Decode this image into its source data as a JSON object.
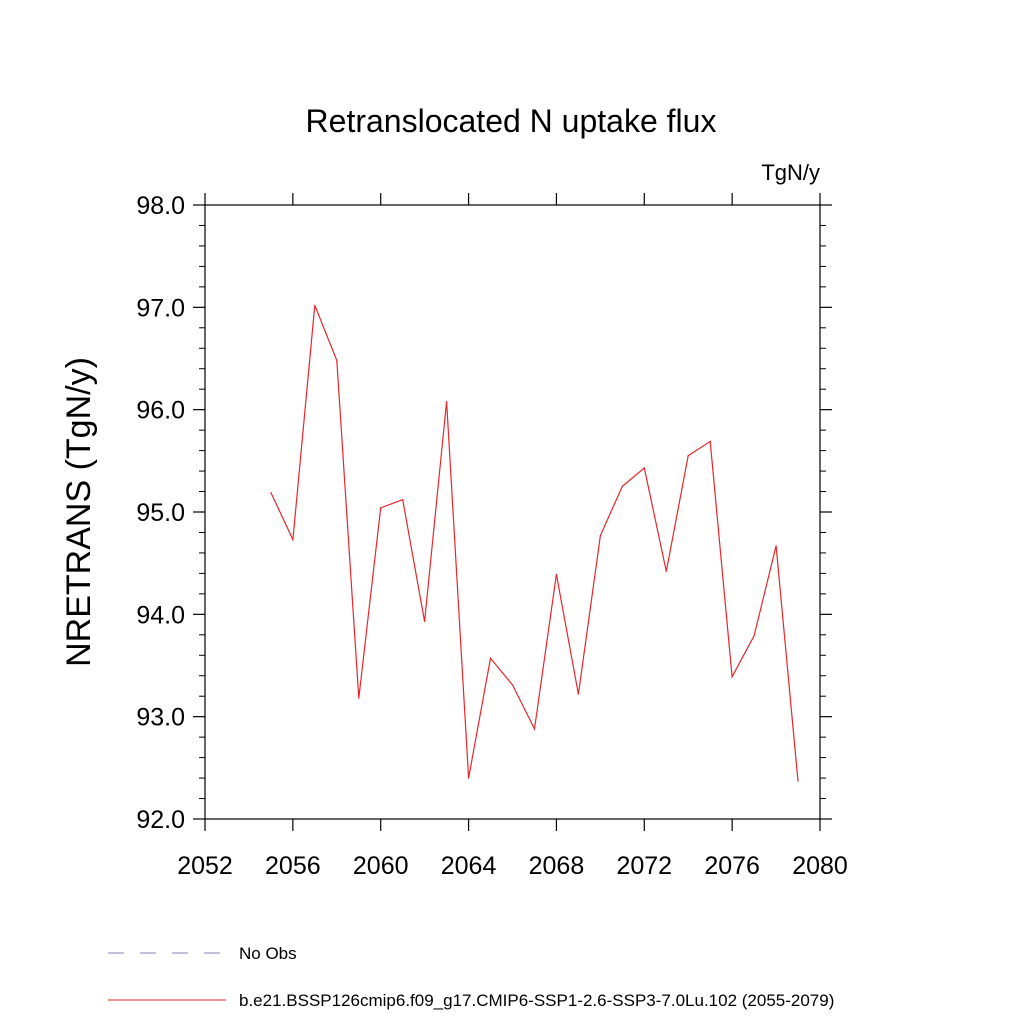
{
  "chart_data": {
    "type": "line",
    "title": "Retranslocated N uptake flux",
    "units_label": "TgN/y",
    "ylabel": "NRETRANS  (TgN/y)",
    "xlabel": "",
    "xlim": [
      2052,
      2080
    ],
    "ylim": [
      92.0,
      98.0
    ],
    "x_ticks": [
      2052,
      2056,
      2060,
      2064,
      2068,
      2072,
      2076,
      2080
    ],
    "x_tick_labels": [
      "2052",
      "2056",
      "2060",
      "2064",
      "2068",
      "2072",
      "2076",
      "2080"
    ],
    "y_ticks": [
      92.0,
      93.0,
      94.0,
      95.0,
      96.0,
      97.0,
      98.0
    ],
    "y_tick_labels": [
      "92.0",
      "93.0",
      "94.0",
      "95.0",
      "96.0",
      "97.0",
      "98.0"
    ],
    "grid": false,
    "legend_position": "bottom-left",
    "series": [
      {
        "name": "b.e21.BSSP126cmip6.f09_g17.CMIP6-SSP1-2.6-SSP3-7.0Lu.102 (2055-2079)",
        "color": "#e8262a",
        "style": "solid",
        "x": [
          2055,
          2056,
          2057,
          2058,
          2059,
          2060,
          2061,
          2062,
          2063,
          2064,
          2065,
          2066,
          2067,
          2068,
          2069,
          2070,
          2071,
          2072,
          2073,
          2074,
          2075,
          2076,
          2077,
          2078,
          2079
        ],
        "y": [
          95.19,
          94.73,
          97.02,
          96.48,
          93.18,
          95.04,
          95.12,
          93.93,
          96.08,
          92.4,
          93.57,
          93.31,
          92.88,
          94.39,
          93.22,
          94.77,
          95.25,
          95.43,
          94.42,
          95.55,
          95.69,
          93.39,
          93.79,
          94.67,
          92.37
        ]
      }
    ],
    "legend": [
      {
        "label": "No Obs",
        "color": "#8b7fb8",
        "style": "dashed"
      },
      {
        "label": "b.e21.BSSP126cmip6.f09_g17.CMIP6-SSP1-2.6-SSP3-7.0Lu.102 (2055-2079)",
        "color": "#e8262a",
        "style": "solid"
      }
    ]
  }
}
